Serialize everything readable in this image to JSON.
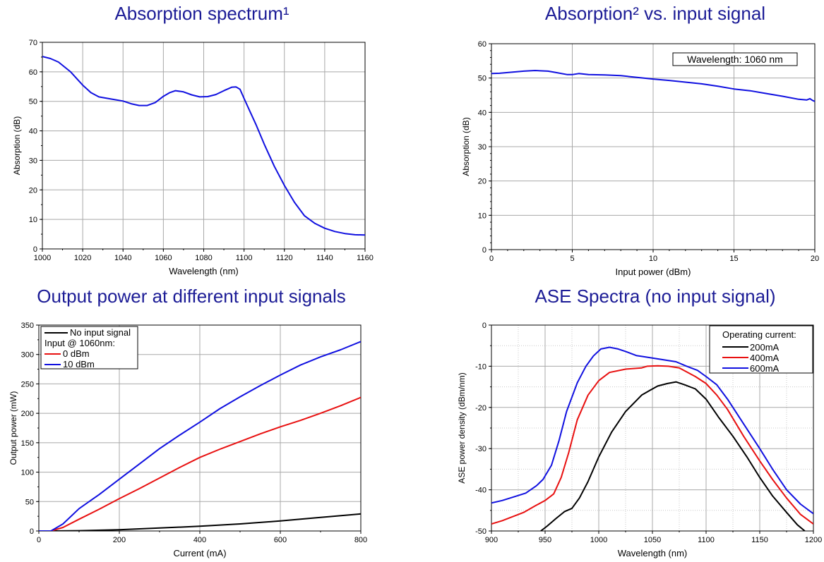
{
  "colors": {
    "title": "#1c1c96",
    "blue": "#1010e0",
    "red": "#e81010",
    "black": "#000000",
    "grid": "#a8a8a8"
  },
  "chart_data": [
    {
      "type": "line",
      "title": "Absorption spectrum¹",
      "xlabel": "Wavelength (nm)",
      "ylabel": "Absorption (dB)",
      "xlim": [
        1000,
        1160
      ],
      "ylim": [
        0,
        70
      ],
      "xticks": [
        1000,
        1020,
        1040,
        1060,
        1080,
        1100,
        1120,
        1140,
        1160
      ],
      "yticks": [
        0,
        10,
        20,
        30,
        40,
        50,
        60,
        70
      ],
      "grid": true,
      "series": [
        {
          "name": "Absorption",
          "color": "#1010e0",
          "x": [
            1000,
            1004,
            1008,
            1014,
            1020,
            1024,
            1028,
            1034,
            1040,
            1044,
            1048,
            1052,
            1056,
            1060,
            1063,
            1066,
            1070,
            1074,
            1078,
            1082,
            1086,
            1090,
            1094,
            1096,
            1098,
            1100,
            1103,
            1106,
            1110,
            1115,
            1120,
            1125,
            1130,
            1135,
            1140,
            1145,
            1150,
            1155,
            1160
          ],
          "y": [
            65.2,
            64.5,
            63.3,
            60,
            55.5,
            53,
            51.5,
            50.8,
            50.1,
            49.2,
            48.6,
            48.6,
            49.6,
            51.7,
            52.9,
            53.6,
            53.2,
            52.2,
            51.5,
            51.6,
            52.3,
            53.6,
            54.8,
            54.9,
            54.1,
            51,
            46.5,
            42,
            35.5,
            28,
            21.5,
            15.8,
            11.2,
            8.7,
            7,
            5.9,
            5.2,
            4.8,
            4.7
          ]
        }
      ]
    },
    {
      "type": "line",
      "title": "Absorption² vs. input signal",
      "xlabel": "Input power (dBm)",
      "ylabel": "Absorption (dB)",
      "xlim": [
        0,
        20
      ],
      "ylim": [
        0,
        60
      ],
      "xticks": [
        0,
        5,
        10,
        15,
        20
      ],
      "yticks": [
        0,
        10,
        20,
        30,
        40,
        50,
        60
      ],
      "grid": true,
      "annotation": "Wavelength: 1060 nm",
      "series": [
        {
          "name": "Absorption",
          "color": "#1010e0",
          "x": [
            0,
            0.5,
            1,
            2,
            2.7,
            3.5,
            4,
            4.7,
            5,
            5.4,
            6,
            7,
            8,
            9,
            10,
            11,
            12,
            13,
            14,
            15,
            16,
            17,
            18,
            19,
            19.5,
            19.7,
            19.85,
            20
          ],
          "y": [
            51.3,
            51.4,
            51.6,
            52,
            52.2,
            52,
            51.6,
            51,
            51,
            51.3,
            51,
            50.9,
            50.7,
            50.2,
            49.7,
            49.3,
            48.8,
            48.3,
            47.6,
            46.8,
            46.3,
            45.5,
            44.7,
            43.8,
            43.6,
            44,
            43.5,
            43.2
          ]
        }
      ]
    },
    {
      "type": "line",
      "title": "Output power at different input signals",
      "xlabel": "Current (mA)",
      "ylabel": "Output power (mW)",
      "xlim": [
        0,
        800
      ],
      "ylim": [
        0,
        350
      ],
      "xticks": [
        0,
        200,
        400,
        600,
        800
      ],
      "yticks": [
        0,
        50,
        100,
        150,
        200,
        250,
        300,
        350
      ],
      "grid": true,
      "legend_position": "top-left",
      "legend_header": "Input @ 1060nm:",
      "series": [
        {
          "name": "No input signal",
          "color": "#000000",
          "x": [
            0,
            30,
            100,
            200,
            300,
            400,
            500,
            600,
            700,
            800
          ],
          "y": [
            0,
            0,
            0.5,
            2,
            5,
            8,
            12,
            17,
            23,
            29
          ]
        },
        {
          "name": "0 dBm",
          "color": "#e81010",
          "x": [
            0,
            30,
            60,
            100,
            150,
            200,
            250,
            300,
            350,
            400,
            450,
            500,
            550,
            600,
            650,
            700,
            750,
            800
          ],
          "y": [
            0,
            0,
            6,
            20,
            37,
            55,
            72,
            90,
            108,
            125,
            139,
            152,
            165,
            177,
            188,
            200,
            213,
            227
          ]
        },
        {
          "name": "10 dBm",
          "color": "#1010e0",
          "x": [
            0,
            30,
            60,
            100,
            150,
            200,
            250,
            300,
            350,
            400,
            450,
            500,
            550,
            600,
            650,
            700,
            750,
            800
          ],
          "y": [
            0,
            0,
            12,
            38,
            62,
            88,
            114,
            140,
            163,
            185,
            208,
            228,
            247,
            265,
            282,
            296,
            308,
            322
          ]
        }
      ]
    },
    {
      "type": "line",
      "title": "ASE Spectra (no input signal)",
      "xlabel": "Wavelength (nm)",
      "ylabel": "ASE power density (dBm/nm)",
      "xlim": [
        900,
        1200
      ],
      "ylim": [
        -50,
        0
      ],
      "xticks": [
        900,
        950,
        1000,
        1050,
        1100,
        1150,
        1200
      ],
      "yticks": [
        -50,
        -40,
        -30,
        -20,
        -10,
        0
      ],
      "grid": true,
      "minor_grid": true,
      "legend_position": "top-right",
      "legend_header": "Operating current:",
      "series": [
        {
          "name": "200mA",
          "color": "#000000",
          "x": [
            946,
            952,
            960,
            968,
            975,
            982,
            990,
            1000,
            1012,
            1025,
            1040,
            1048,
            1055,
            1064,
            1072,
            1080,
            1090,
            1100,
            1112,
            1125,
            1138,
            1150,
            1162,
            1175,
            1185,
            1192
          ],
          "y": [
            -50,
            -48.8,
            -47,
            -45.3,
            -44.5,
            -42,
            -38,
            -32,
            -26,
            -21,
            -17,
            -15.8,
            -14.8,
            -14.2,
            -13.8,
            -14.5,
            -15.5,
            -18,
            -22.5,
            -27,
            -32,
            -37,
            -41.5,
            -45.5,
            -48.5,
            -50
          ]
        },
        {
          "name": "400mA",
          "color": "#e81010",
          "x": [
            900,
            910,
            920,
            930,
            940,
            950,
            958,
            965,
            972,
            980,
            990,
            1000,
            1010,
            1025,
            1040,
            1045,
            1055,
            1065,
            1075,
            1090,
            1100,
            1110,
            1120,
            1135,
            1150,
            1162,
            1175,
            1188,
            1200
          ],
          "y": [
            -48.3,
            -47.5,
            -46.5,
            -45.5,
            -44,
            -42.6,
            -41,
            -37,
            -31,
            -23,
            -17,
            -13.5,
            -11.5,
            -10.7,
            -10.4,
            -10,
            -9.9,
            -10,
            -10.4,
            -12.5,
            -14.2,
            -17,
            -20.5,
            -27,
            -33,
            -37.5,
            -42,
            -46,
            -48.3
          ]
        },
        {
          "name": "600mA",
          "color": "#1010e0",
          "x": [
            900,
            910,
            920,
            932,
            942,
            948,
            956,
            963,
            970,
            980,
            988,
            995,
            1002,
            1010,
            1018,
            1025,
            1035,
            1040,
            1050,
            1062,
            1072,
            1082,
            1092,
            1100,
            1110,
            1120,
            1135,
            1150,
            1162,
            1175,
            1188,
            1200
          ],
          "y": [
            -43.2,
            -42.6,
            -41.8,
            -40.8,
            -39,
            -37.5,
            -34,
            -28,
            -21,
            -14,
            -10,
            -7.5,
            -5.8,
            -5.4,
            -5.8,
            -6.4,
            -7.4,
            -7.6,
            -8,
            -8.5,
            -8.9,
            -10,
            -11,
            -12.5,
            -14.5,
            -18,
            -24,
            -30,
            -35,
            -40,
            -43.5,
            -45.8
          ]
        }
      ]
    }
  ]
}
